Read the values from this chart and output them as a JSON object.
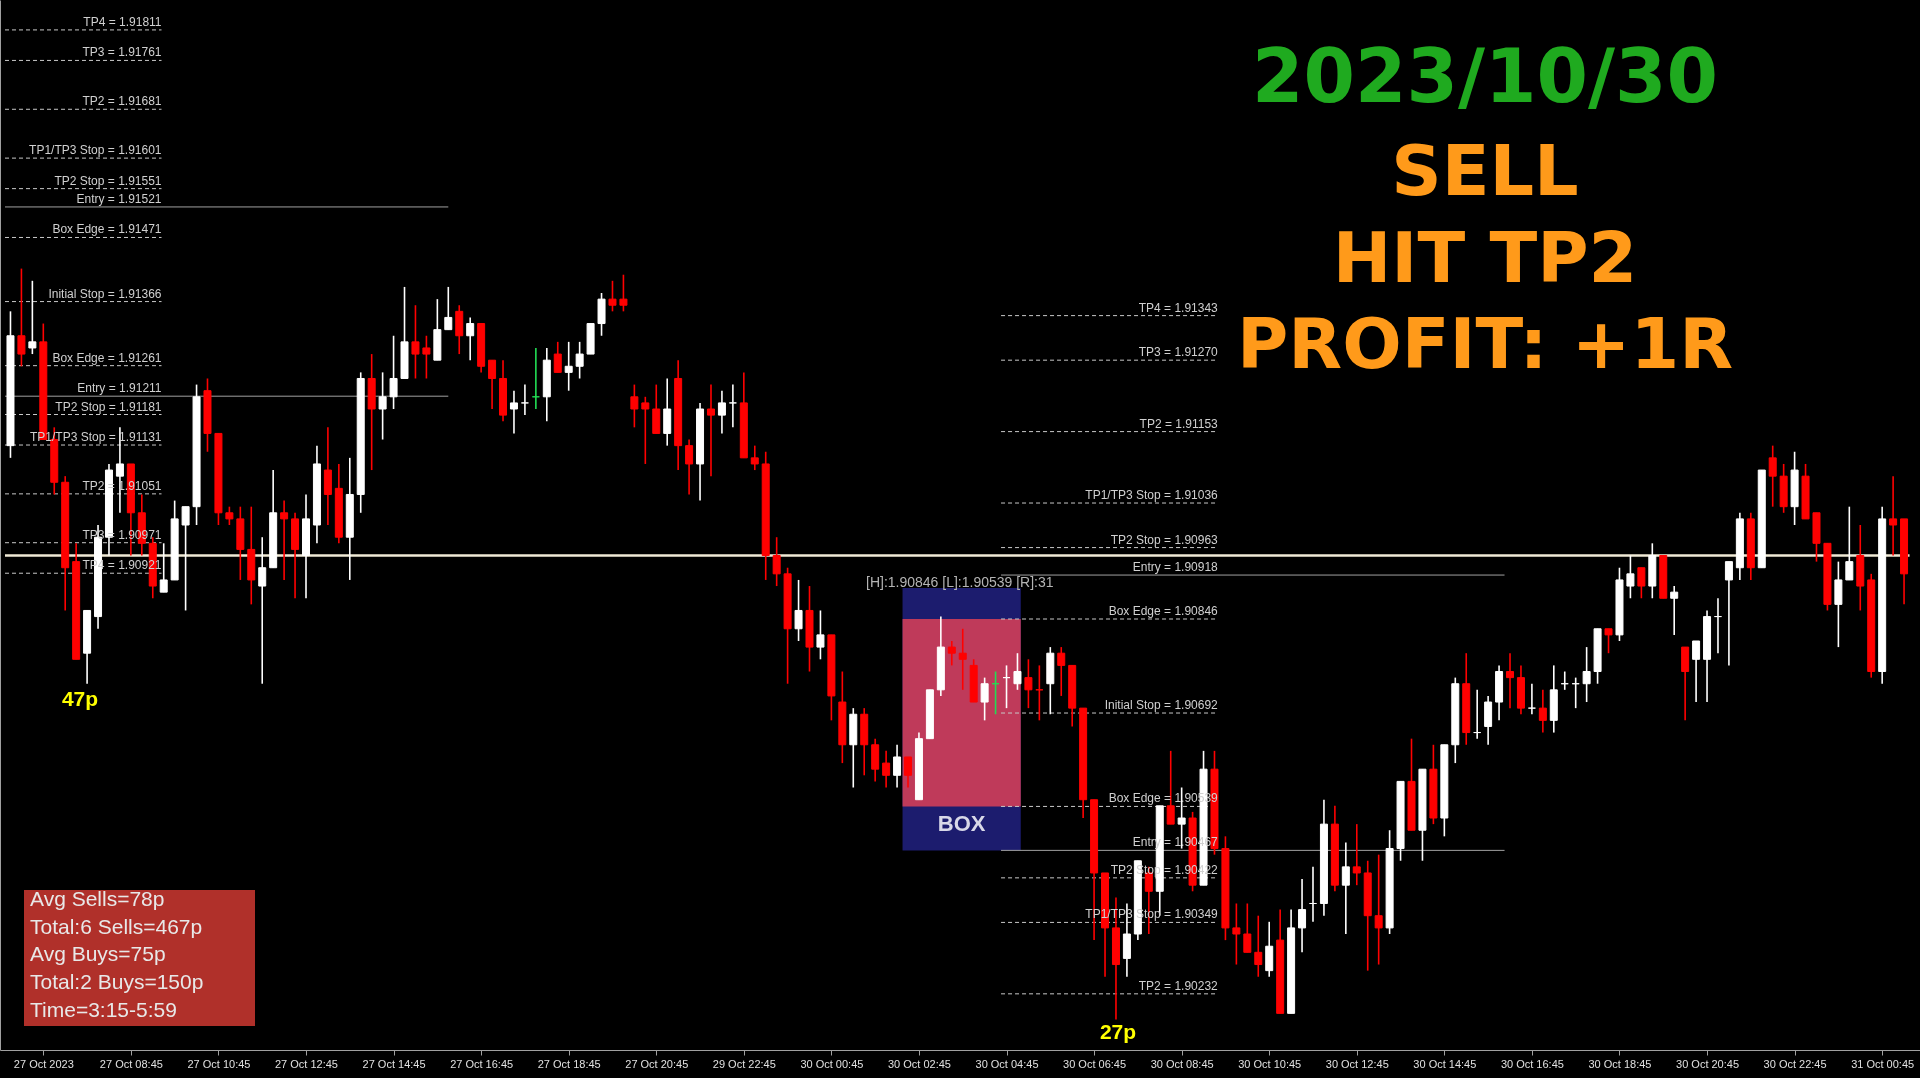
{
  "chart_data": {
    "type": "candlestick",
    "title": "2023/10/30",
    "categories": [
      null,
      null,
      null,
      "27 Oct 2023",
      null,
      null,
      null,
      null,
      null,
      null,
      null,
      "27 Oct 08:45",
      null,
      null,
      null,
      null,
      null,
      null,
      null,
      "27 Oct 10:45",
      null,
      null,
      null,
      null,
      null,
      null,
      null,
      "27 Oct 12:45",
      null,
      null,
      null,
      null,
      null,
      null,
      null,
      "27 Oct 14:45",
      null,
      null,
      null,
      null,
      null,
      null,
      null,
      "27 Oct 16:45",
      null,
      null,
      null,
      null,
      null,
      null,
      null,
      "27 Oct 18:45",
      null,
      null,
      null,
      null,
      null,
      null,
      null,
      "27 Oct 20:45",
      null,
      null,
      null,
      null,
      null,
      null,
      null,
      "29 Oct 22:45",
      null,
      null,
      null,
      null,
      null,
      null,
      null,
      "30 Oct 00:45",
      null,
      null,
      null,
      null,
      null,
      null,
      null,
      "30 Oct 02:45",
      null,
      null,
      null,
      null,
      null,
      null,
      null,
      "30 Oct 04:45",
      null,
      null,
      null,
      null,
      null,
      null,
      null,
      "30 Oct 06:45",
      null,
      null,
      null,
      null,
      null,
      null,
      null,
      "30 Oct 08:45",
      null,
      null,
      null,
      null,
      null,
      null,
      null,
      "30 Oct 10:45",
      null,
      null,
      null,
      null,
      null,
      null,
      null,
      "30 Oct 12:45",
      null,
      null,
      null,
      null,
      null,
      null,
      null,
      "30 Oct 14:45",
      null,
      null,
      null,
      null,
      null,
      null,
      null,
      "30 Oct 16:45",
      null,
      null,
      null,
      null,
      null,
      null,
      null,
      "30 Oct 18:45",
      null,
      null,
      null,
      null,
      null,
      null,
      null,
      "30 Oct 20:45",
      null,
      null,
      null,
      null,
      null,
      null,
      null,
      "30 Oct 22:45",
      null,
      null,
      null,
      null,
      null,
      null,
      null,
      "31 Oct 00:45",
      null,
      null
    ],
    "ohlc": [
      [
        1.9113,
        1.9135,
        1.9111,
        1.9131
      ],
      [
        1.9131,
        1.9142,
        1.9126,
        1.9128
      ],
      [
        1.9129,
        1.914,
        1.9128,
        1.913
      ],
      [
        1.913,
        1.9133,
        1.9114,
        1.9114
      ],
      [
        1.9114,
        1.9116,
        1.9105,
        1.9107
      ],
      [
        1.9107,
        1.9108,
        1.9086,
        1.9093
      ],
      [
        1.9094,
        1.9097,
        1.9078,
        1.9078
      ],
      [
        1.9079,
        1.9086,
        1.9074,
        1.9086
      ],
      [
        1.9085,
        1.91,
        1.9083,
        1.9098
      ],
      [
        1.9098,
        1.911,
        1.9095,
        1.9109
      ],
      [
        1.9108,
        1.9116,
        1.9102,
        1.911
      ],
      [
        1.911,
        1.911,
        1.9095,
        1.9102
      ],
      [
        1.9102,
        1.9105,
        1.9095,
        1.9097
      ],
      [
        1.9097,
        1.9098,
        1.9088,
        1.909
      ],
      [
        1.9089,
        1.9097,
        1.9089,
        1.9091
      ],
      [
        1.9091,
        1.9104,
        1.9091,
        1.9101
      ],
      [
        1.91,
        1.9103,
        1.9086,
        1.9103
      ],
      [
        1.9103,
        1.9123,
        1.91,
        1.9121
      ],
      [
        1.9122,
        1.9124,
        1.9112,
        1.9115
      ],
      [
        1.9115,
        1.9115,
        1.91,
        1.9102
      ],
      [
        1.9102,
        1.9103,
        1.91,
        1.9101
      ],
      [
        1.9101,
        1.9103,
        1.9091,
        1.9096
      ],
      [
        1.9096,
        1.9103,
        1.9087,
        1.9091
      ],
      [
        1.909,
        1.9098,
        1.9074,
        1.9093
      ],
      [
        1.9093,
        1.9109,
        1.9093,
        1.9102
      ],
      [
        1.9102,
        1.9104,
        1.9091,
        1.9101
      ],
      [
        1.9101,
        1.9102,
        1.9088,
        1.9096
      ],
      [
        1.9095,
        1.9105,
        1.9088,
        1.9101
      ],
      [
        1.91,
        1.9113,
        1.9097,
        1.911
      ],
      [
        1.9109,
        1.9116,
        1.91,
        1.9105
      ],
      [
        1.9106,
        1.911,
        1.9097,
        1.9098
      ],
      [
        1.9098,
        1.9111,
        1.9091,
        1.9105
      ],
      [
        1.9105,
        1.9125,
        1.9102,
        1.9124
      ],
      [
        1.9124,
        1.9128,
        1.9109,
        1.9119
      ],
      [
        1.9119,
        1.9125,
        1.9114,
        1.9121
      ],
      [
        1.9121,
        1.9131,
        1.9119,
        1.9124
      ],
      [
        1.9124,
        1.9139,
        1.9124,
        1.913
      ],
      [
        1.913,
        1.9136,
        1.9124,
        1.9128
      ],
      [
        1.9129,
        1.9131,
        1.9124,
        1.9128
      ],
      [
        1.9127,
        1.9137,
        1.9127,
        1.9132
      ],
      [
        1.9132,
        1.9139,
        1.9132,
        1.9134
      ],
      [
        1.9135,
        1.9136,
        1.9128,
        1.9131
      ],
      [
        1.9131,
        1.9134,
        1.9127,
        1.9133
      ],
      [
        1.9133,
        1.9133,
        1.9125,
        1.9126
      ],
      [
        1.9127,
        1.9127,
        1.9119,
        1.9124
      ],
      [
        1.9124,
        1.9127,
        1.9117,
        1.9118
      ],
      [
        1.9119,
        1.9122,
        1.9115,
        1.912
      ],
      [
        1.912,
        1.9123,
        1.9118,
        1.912
      ],
      [
        1.9121,
        1.9129,
        1.9119,
        1.9121
      ],
      [
        1.9121,
        1.9129,
        1.9117,
        1.9127
      ],
      [
        1.9128,
        1.913,
        1.9125,
        1.9125
      ],
      [
        1.9125,
        1.913,
        1.9122,
        1.9126
      ],
      [
        1.9126,
        1.913,
        1.9124,
        1.9128
      ],
      [
        1.9128,
        1.9133,
        1.9128,
        1.9133
      ],
      [
        1.9133,
        1.9138,
        1.9131,
        1.9137
      ],
      [
        1.9137,
        1.914,
        1.9135,
        1.9136
      ],
      [
        1.9137,
        1.9141,
        1.9135,
        1.9136
      ],
      [
        1.9121,
        1.9123,
        1.9116,
        1.9119
      ],
      [
        1.912,
        1.9121,
        1.911,
        1.9119
      ],
      [
        1.9119,
        1.9123,
        1.9115,
        1.9115
      ],
      [
        1.9115,
        1.9124,
        1.9113,
        1.9119
      ],
      [
        1.9124,
        1.9127,
        1.9109,
        1.9113
      ],
      [
        1.9113,
        1.9114,
        1.9105,
        1.911
      ],
      [
        1.911,
        1.912,
        1.9104,
        1.9119
      ],
      [
        1.9119,
        1.9123,
        1.9108,
        1.9118
      ],
      [
        1.9118,
        1.9122,
        1.9115,
        1.912
      ],
      [
        1.912,
        1.9123,
        1.9116,
        1.912
      ],
      [
        1.912,
        1.9125,
        1.9111,
        1.9111
      ],
      [
        1.9111,
        1.9113,
        1.9109,
        1.911
      ],
      [
        1.911,
        1.9112,
        1.9091,
        1.9095
      ],
      [
        1.9095,
        1.9098,
        1.909,
        1.9092
      ],
      [
        1.9092,
        1.9093,
        1.9074,
        1.9083
      ],
      [
        1.9083,
        1.9091,
        1.9081,
        1.9086
      ],
      [
        1.9086,
        1.909,
        1.9076,
        1.908
      ],
      [
        1.908,
        1.9086,
        1.9078,
        1.9082
      ],
      [
        1.9082,
        1.9082,
        1.9068,
        1.9072
      ],
      [
        1.9071,
        1.9076,
        1.9061,
        1.9064
      ],
      [
        1.9064,
        1.907,
        1.9057,
        1.9069
      ],
      [
        1.9069,
        1.907,
        1.9059,
        1.9064
      ],
      [
        1.9064,
        1.9065,
        1.9058,
        1.906
      ],
      [
        1.9061,
        1.9063,
        1.9057,
        1.9059
      ],
      [
        1.9059,
        1.9064,
        1.9057,
        1.9062
      ],
      [
        1.9062,
        1.9062,
        1.9057,
        1.9059
      ],
      [
        1.9055,
        1.9066,
        1.9055,
        1.9065
      ],
      [
        1.9065,
        1.9073,
        1.9065,
        1.9073
      ],
      [
        1.9073,
        1.9085,
        1.9072,
        1.908
      ],
      [
        1.908,
        1.9081,
        1.9077,
        1.9079
      ],
      [
        1.9079,
        1.9083,
        1.9073,
        1.9078
      ],
      [
        1.9077,
        1.9078,
        1.9071,
        1.9071
      ],
      [
        1.9071,
        1.9075,
        1.9068,
        1.9074
      ],
      [
        1.9074,
        1.9076,
        1.9069,
        1.9074
      ],
      [
        1.9075,
        1.9077,
        1.907,
        1.9075
      ],
      [
        1.9074,
        1.9079,
        1.9073,
        1.9076
      ],
      [
        1.9075,
        1.9078,
        1.907,
        1.9073
      ],
      [
        1.9073,
        1.9077,
        1.9068,
        1.9073
      ],
      [
        1.9074,
        1.908,
        1.9069,
        1.9079
      ],
      [
        1.9079,
        1.908,
        1.9072,
        1.9077
      ],
      [
        1.9077,
        1.9077,
        1.9067,
        1.907
      ],
      [
        1.907,
        1.907,
        1.9052,
        1.9055
      ],
      [
        1.9055,
        1.9055,
        1.9032,
        1.9043
      ],
      [
        1.9043,
        1.9043,
        1.9026,
        1.9034
      ],
      [
        1.9034,
        1.9039,
        1.9019,
        1.9028
      ],
      [
        1.9029,
        1.9038,
        1.9026,
        1.9033
      ],
      [
        1.9033,
        1.9045,
        1.9032,
        1.9045
      ],
      [
        1.9043,
        1.9044,
        1.9033,
        1.904
      ],
      [
        1.904,
        1.9054,
        1.9036,
        1.9054
      ],
      [
        1.9054,
        1.9063,
        1.9051,
        1.9051
      ],
      [
        1.9051,
        1.9057,
        1.9047,
        1.9052
      ],
      [
        1.9052,
        1.9053,
        1.904,
        1.9041
      ],
      [
        1.9041,
        1.9063,
        1.9041,
        1.906
      ],
      [
        1.906,
        1.9063,
        1.9046,
        1.9047
      ],
      [
        1.9047,
        1.9049,
        1.9032,
        1.9034
      ],
      [
        1.9034,
        1.9038,
        1.9028,
        1.9033
      ],
      [
        1.9033,
        1.9038,
        1.903,
        1.903
      ],
      [
        1.903,
        1.9036,
        1.9026,
        1.9028
      ],
      [
        1.9027,
        1.9035,
        1.9026,
        1.9031
      ],
      [
        1.9032,
        1.9037,
        1.902,
        1.902
      ],
      [
        1.902,
        1.9037,
        1.902,
        1.9034
      ],
      [
        1.9034,
        1.9042,
        1.903,
        1.9037
      ],
      [
        1.9038,
        1.9044,
        1.9035,
        1.9038
      ],
      [
        1.9038,
        1.9055,
        1.9036,
        1.9051
      ],
      [
        1.9051,
        1.9054,
        1.904,
        1.9041
      ],
      [
        1.9041,
        1.9048,
        1.9033,
        1.9044
      ],
      [
        1.9044,
        1.9051,
        1.9041,
        1.9043
      ],
      [
        1.9043,
        1.9045,
        1.9027,
        1.9036
      ],
      [
        1.9036,
        1.9046,
        1.9028,
        1.9034
      ],
      [
        1.9034,
        1.905,
        1.9033,
        1.9047
      ],
      [
        1.9047,
        1.9058,
        1.9045,
        1.9058
      ],
      [
        1.9058,
        1.9065,
        1.905,
        1.905
      ],
      [
        1.905,
        1.906,
        1.9045,
        1.906
      ],
      [
        1.906,
        1.9064,
        1.9051,
        1.9052
      ],
      [
        1.9052,
        1.9064,
        1.9049,
        1.9064
      ],
      [
        1.9064,
        1.9075,
        1.9061,
        1.9074
      ],
      [
        1.9074,
        1.9079,
        1.9064,
        1.9066
      ],
      [
        1.9066,
        1.9073,
        1.9065,
        1.9066
      ],
      [
        1.9067,
        1.9072,
        1.9064,
        1.9071
      ],
      [
        1.9071,
        1.9077,
        1.9068,
        1.9076
      ],
      [
        1.9076,
        1.9079,
        1.907,
        1.9075
      ],
      [
        1.9075,
        1.9077,
        1.9069,
        1.907
      ],
      [
        1.907,
        1.9074,
        1.9069,
        1.907
      ],
      [
        1.907,
        1.9073,
        1.9066,
        1.9068
      ],
      [
        1.9068,
        1.9077,
        1.9066,
        1.9073
      ],
      [
        1.9074,
        1.9076,
        1.9073,
        1.9074
      ],
      [
        1.9074,
        1.9075,
        1.907,
        1.9074
      ],
      [
        1.9074,
        1.908,
        1.9071,
        1.9076
      ],
      [
        1.9076,
        1.9083,
        1.9074,
        1.9083
      ],
      [
        1.9083,
        1.9083,
        1.9079,
        1.9082
      ],
      [
        1.9082,
        1.9093,
        1.9081,
        1.9091
      ],
      [
        1.909,
        1.9095,
        1.9088,
        1.9092
      ],
      [
        1.9093,
        1.9093,
        1.9088,
        1.909
      ],
      [
        1.909,
        1.9097,
        1.9088,
        1.9095
      ],
      [
        1.9095,
        1.9095,
        1.9088,
        1.9088
      ],
      [
        1.9088,
        1.909,
        1.9082,
        1.9089
      ],
      [
        1.908,
        1.908,
        1.9068,
        1.9076
      ],
      [
        1.9078,
        1.9081,
        1.9071,
        1.9081
      ],
      [
        1.9078,
        1.9086,
        1.9071,
        1.9085
      ],
      [
        1.9085,
        1.9088,
        1.9079,
        1.9085
      ],
      [
        1.9091,
        1.9094,
        1.9077,
        1.9094
      ],
      [
        1.9093,
        1.9102,
        1.9091,
        1.9101
      ],
      [
        1.9101,
        1.9102,
        1.9091,
        1.9093
      ],
      [
        1.9093,
        1.9109,
        1.9093,
        1.9109
      ],
      [
        1.9111,
        1.9113,
        1.9103,
        1.9108
      ],
      [
        1.9108,
        1.911,
        1.9102,
        1.9103
      ],
      [
        1.9103,
        1.9112,
        1.91,
        1.9109
      ],
      [
        1.9108,
        1.911,
        1.9101,
        1.9101
      ],
      [
        1.9102,
        1.9102,
        1.9094,
        1.9097
      ],
      [
        1.9097,
        1.9097,
        1.9086,
        1.9087
      ],
      [
        1.9087,
        1.9094,
        1.908,
        1.9091
      ],
      [
        1.9091,
        1.9103,
        1.9091,
        1.9094
      ],
      [
        1.9095,
        1.91,
        1.9086,
        1.909
      ],
      [
        1.9091,
        1.9092,
        1.9075,
        1.9076
      ],
      [
        1.9076,
        1.9103,
        1.9074,
        1.9101
      ],
      [
        1.9101,
        1.9108,
        1.9095,
        1.91
      ],
      [
        1.9101,
        1.9101,
        1.9087,
        1.9092
      ]
    ],
    "colors": [
      "#ffffff",
      "#ff0000",
      "#ffffff",
      "#ff0000",
      "#ff0000",
      "#ff0000",
      "#ff0000",
      "#ffffff",
      "#ffffff",
      "#ffffff",
      "#ffffff",
      "#ff0000",
      "#ff0000",
      "#ff0000",
      "#ffffff",
      "#ffffff",
      "#ffffff",
      "#ffffff",
      "#ff0000",
      "#ff0000",
      "#ff0000",
      "#ff0000",
      "#ff0000",
      "#ffffff",
      "#ffffff",
      "#ff0000",
      "#ff0000",
      "#ffffff",
      "#ffffff",
      "#ff0000",
      "#ff0000",
      "#ffffff",
      "#ffffff",
      "#ff0000",
      "#ffffff",
      "#ffffff",
      "#ffffff",
      "#ff0000",
      "#ff0000",
      "#ffffff",
      "#ffffff",
      "#ff0000",
      "#ffffff",
      "#ff0000",
      "#ff0000",
      "#ff0000",
      "#ffffff",
      "#ffffff",
      "#22dd55",
      "#ffffff",
      "#ff0000",
      "#ffffff",
      "#ffffff",
      "#ffffff",
      "#ffffff",
      "#ff0000",
      "#ff0000",
      "#ff0000",
      "#ff0000",
      "#ff0000",
      "#ffffff",
      "#ff0000",
      "#ff0000",
      "#ffffff",
      "#ff0000",
      "#ffffff",
      "#ffffff",
      "#ff0000",
      "#ff0000",
      "#ff0000",
      "#ff0000",
      "#ff0000",
      "#ffffff",
      "#ff0000",
      "#ffffff",
      "#ff0000",
      "#ff0000",
      "#ffffff",
      "#ff0000",
      "#ff0000",
      "#ff0000",
      "#ffffff",
      "#ff0000",
      "#ffffff",
      "#ffffff",
      "#ffffff",
      "#ff0000",
      "#ff0000",
      "#ff0000",
      "#ffffff",
      "#22dd55",
      "#ffffff",
      "#ffffff",
      "#ff0000",
      "#ff0000",
      "#ffffff",
      "#ff0000",
      "#ff0000",
      "#ff0000",
      "#ff0000",
      "#ff0000",
      "#ff0000",
      "#ffffff",
      "#ffffff",
      "#ff0000",
      "#ffffff",
      "#ff0000",
      "#ffffff",
      "#ff0000",
      "#ffffff",
      "#ff0000",
      "#ff0000",
      "#ff0000",
      "#ff0000",
      "#ff0000",
      "#ffffff",
      "#ff0000",
      "#ffffff",
      "#ffffff",
      "#ffffff",
      "#ffffff",
      "#ff0000",
      "#ffffff",
      "#ff0000",
      "#ff0000",
      "#ff0000",
      "#ffffff",
      "#ffffff",
      "#ff0000",
      "#ffffff",
      "#ff0000",
      "#ffffff",
      "#ffffff",
      "#ff0000",
      "#ffffff",
      "#ffffff",
      "#ffffff",
      "#ff0000",
      "#ff0000",
      "#ffffff",
      "#ff0000",
      "#ffffff",
      "#ffffff",
      "#ffffff",
      "#ffffff",
      "#ffffff",
      "#ff0000",
      "#ffffff",
      "#ffffff",
      "#ff0000",
      "#ffffff",
      "#ff0000",
      "#ffffff",
      "#ff0000",
      "#ffffff",
      "#ffffff",
      "#ffffff",
      "#ffffff",
      "#ffffff",
      "#ff0000",
      "#ffffff",
      "#ff0000",
      "#ff0000",
      "#ffffff",
      "#ff0000",
      "#ff0000",
      "#ff0000",
      "#ffffff",
      "#ffffff",
      "#ff0000",
      "#ff0000",
      "#ffffff",
      "#ff0000",
      "#ff0000"
    ],
    "ylim": [
      1.9014,
      1.9186
    ],
    "tick_labels": "x",
    "grid": false,
    "ref_lines": [
      {
        "axis": "y",
        "value": 1.91811,
        "label": "TP4 = 1.91811",
        "color": "#c8c8c8",
        "line_style": "dashed"
      },
      {
        "axis": "y",
        "value": 1.91761,
        "label": "TP3 = 1.91761",
        "color": "#c8c8c8",
        "line_style": "dashed"
      },
      {
        "axis": "y",
        "value": 1.91681,
        "label": "TP2 = 1.91681",
        "color": "#c8c8c8",
        "line_style": "dashed"
      },
      {
        "axis": "y",
        "value": 1.91601,
        "label": "TP1/TP3 Stop = 1.91601",
        "color": "#c8c8c8",
        "line_style": "dashed"
      },
      {
        "axis": "y",
        "value": 1.91551,
        "label": "TP2 Stop = 1.91551",
        "color": "#c8c8c8",
        "line_style": "dashed"
      },
      {
        "axis": "y",
        "value": 1.91521,
        "label": "Entry = 1.91521",
        "color": "#a0a0a0",
        "line_style": "solid"
      },
      {
        "axis": "y",
        "value": 1.91471,
        "label": "Box Edge = 1.91471",
        "color": "#c8c8c8",
        "line_style": "dashed"
      },
      {
        "axis": "y",
        "value": 1.91366,
        "label": "Initial Stop = 1.91366",
        "color": "#c8c8c8",
        "line_style": "dashed"
      },
      {
        "axis": "y",
        "value": 1.91261,
        "label": "Box Edge = 1.91261",
        "color": "#c8c8c8",
        "line_style": "dashed"
      },
      {
        "axis": "y",
        "value": 1.91211,
        "label": "Entry = 1.91211",
        "color": "#a0a0a0",
        "line_style": "solid"
      },
      {
        "axis": "y",
        "value": 1.91181,
        "label": "TP2 Stop = 1.91181",
        "color": "#c8c8c8",
        "line_style": "dashed"
      },
      {
        "axis": "y",
        "value": 1.91131,
        "label": "TP1/TP3 Stop = 1.91131",
        "color": "#c8c8c8",
        "line_style": "dashed"
      },
      {
        "axis": "y",
        "value": 1.91051,
        "label": "TP2 = 1.91051",
        "color": "#c8c8c8",
        "line_style": "dashed"
      },
      {
        "axis": "y",
        "value": 1.90971,
        "label": "TP3 = 1.90971",
        "color": "#c8c8c8",
        "line_style": "dashed"
      },
      {
        "axis": "y",
        "value": 1.90921,
        "label": "TP4 = 1.90921",
        "color": "#c8c8c8",
        "line_style": "dashed"
      },
      {
        "axis": "y",
        "value": 1.91343,
        "label": "TP4 = 1.91343",
        "color": "#c8c8c8",
        "line_style": "dashed"
      },
      {
        "axis": "y",
        "value": 1.9127,
        "label": "TP3 = 1.91270",
        "color": "#c8c8c8",
        "line_style": "dashed"
      },
      {
        "axis": "y",
        "value": 1.91153,
        "label": "TP2 = 1.91153",
        "color": "#c8c8c8",
        "line_style": "dashed"
      },
      {
        "axis": "y",
        "value": 1.91036,
        "label": "TP1/TP3 Stop = 1.91036",
        "color": "#c8c8c8",
        "line_style": "dashed"
      },
      {
        "axis": "y",
        "value": 1.90963,
        "label": "TP2 Stop = 1.90963",
        "color": "#c8c8c8",
        "line_style": "dashed"
      },
      {
        "axis": "y",
        "value": 1.90918,
        "label": "Entry = 1.90918",
        "color": "#a0a0a0",
        "line_style": "solid"
      },
      {
        "axis": "y",
        "value": 1.90846,
        "label": "Box Edge = 1.90846",
        "color": "#c8c8c8",
        "line_style": "dashed"
      },
      {
        "axis": "y",
        "value": 1.90692,
        "label": "Initial Stop = 1.90692",
        "color": "#c8c8c8",
        "line_style": "dashed"
      },
      {
        "axis": "y",
        "value": 1.90539,
        "label": "Box Edge = 1.90539",
        "color": "#c8c8c8",
        "line_style": "dashed"
      },
      {
        "axis": "y",
        "value": 1.90467,
        "label": "Entry = 1.90467",
        "color": "#a0a0a0",
        "line_style": "solid"
      },
      {
        "axis": "y",
        "value": 1.90422,
        "label": "TP2 Stop = 1.90422",
        "color": "#c8c8c8",
        "line_style": "dashed"
      },
      {
        "axis": "y",
        "value": 1.90349,
        "label": "TP1/TP3 Stop = 1.90349",
        "color": "#c8c8c8",
        "line_style": "dashed"
      },
      {
        "axis": "y",
        "value": 1.90232,
        "label": "TP2 = 1.90232",
        "color": "#c8c8c8",
        "line_style": "dashed"
      },
      {
        "axis": "y",
        "value": 1.9095,
        "label": null,
        "color": "#f0ead6",
        "line_style": "solid"
      }
    ],
    "bands": [
      {
        "axis": "y",
        "from": 1.90467,
        "to": 1.90897,
        "label": "BOX",
        "color": "#1c1c6e"
      },
      {
        "axis": "y",
        "from": 1.90539,
        "to": 1.90846,
        "color": "#bf3a5a"
      }
    ],
    "annotations": [
      "[H]:1.90846 [L]:1.90539 [R]:31",
      "47p",
      "27p",
      "Avg Sells=78p",
      "Total:6 Sells=467p",
      "Avg Buys=75p",
      "Total:2 Buys=150p",
      "Time=3:15-5:59",
      "SELL",
      "HIT TP2",
      "PROFIT: +1R"
    ]
  }
}
